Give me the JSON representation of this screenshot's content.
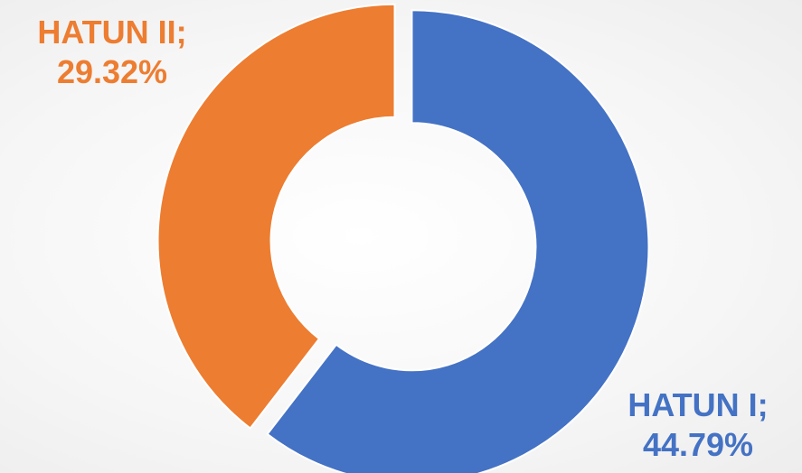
{
  "chart_data": {
    "type": "pie",
    "variant": "donut",
    "title": "",
    "series": [
      {
        "name": "HATUN I",
        "value": 44.79,
        "display_value": "44.79%",
        "label_separator": ";",
        "color": "#4472C4"
      },
      {
        "name": "HATUN II",
        "value": 29.32,
        "display_value": "29.32%",
        "label_separator": ";",
        "color": "#ED7D31"
      }
    ],
    "start_angle_deg": 0,
    "direction": "clockwise",
    "exploded": true,
    "legend": "none"
  }
}
